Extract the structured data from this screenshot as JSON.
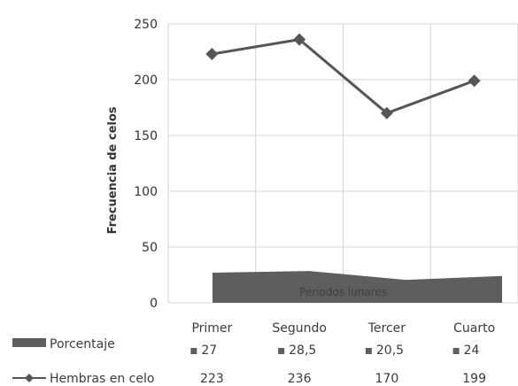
{
  "chart_data": {
    "type": "line",
    "title": "",
    "xlabel": "",
    "ylabel": "Frecuencia de celos",
    "inner_label": "Periodos lunares",
    "ylim": [
      0,
      250
    ],
    "yticks": [
      0,
      50,
      100,
      150,
      200,
      250
    ],
    "categories": [
      "Primer",
      "Segundo",
      "Tercer",
      "Cuarto"
    ],
    "grid": true,
    "legend_position": "bottom data table",
    "series": [
      {
        "name": "Porcentaje",
        "type": "area",
        "color": "#5e5e5e",
        "values": [
          27,
          28.5,
          20.5,
          24
        ],
        "labels": [
          "27",
          "28,5",
          "20,5",
          "24"
        ]
      },
      {
        "name": "Hembras en celo",
        "type": "line",
        "marker": "diamond",
        "color": "#555555",
        "values": [
          223,
          236,
          170,
          199
        ],
        "labels": [
          "223",
          "236",
          "170",
          "199"
        ]
      }
    ]
  }
}
